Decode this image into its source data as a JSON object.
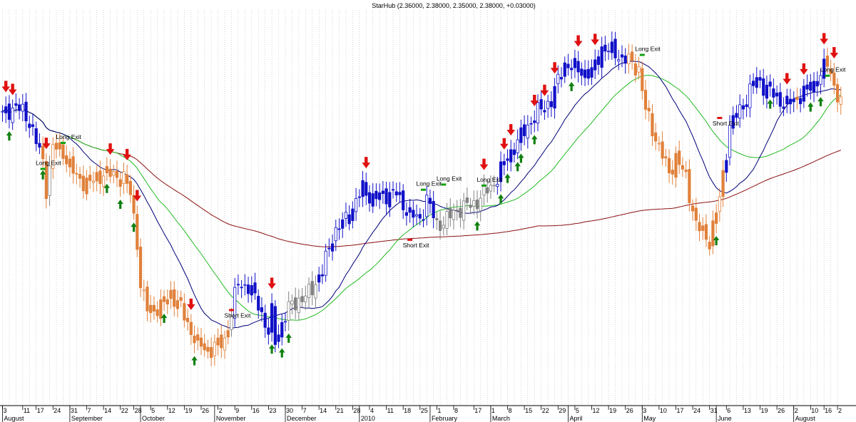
{
  "chart_data": {
    "type": "candlestick",
    "title": "StarHub (2.36000, 2.38000, 2.35000, 2.38000, +0.03000)",
    "grid": "vertical dotted",
    "colors": {
      "up_candle": "#1010c8",
      "down_candle": "#e0803a",
      "neutral_candle": "#808080",
      "ma_short": "#00007a",
      "ma_medium": "#22bb22",
      "ma_long": "#8b1010",
      "buy_arrow": "#108010",
      "sell_arrow": "#e01010",
      "exit_marker_long": "#10a010",
      "exit_marker_short": "#e01010"
    },
    "x_ticks": [
      {
        "label": "3",
        "i": 0
      },
      {
        "label": "11",
        "i": 6
      },
      {
        "label": "17",
        "i": 10
      },
      {
        "label": "24",
        "i": 15
      },
      {
        "label": "31",
        "i": 20
      },
      {
        "label": "7",
        "i": 25
      },
      {
        "label": "14",
        "i": 30
      },
      {
        "label": "22",
        "i": 35
      },
      {
        "label": "28",
        "i": 39
      },
      {
        "label": "5",
        "i": 44
      },
      {
        "label": "12",
        "i": 49
      },
      {
        "label": "19",
        "i": 54
      },
      {
        "label": "26",
        "i": 59
      },
      {
        "label": "2",
        "i": 64
      },
      {
        "label": "9",
        "i": 69
      },
      {
        "label": "16",
        "i": 74
      },
      {
        "label": "23",
        "i": 79
      },
      {
        "label": "30",
        "i": 84
      },
      {
        "label": "7",
        "i": 89
      },
      {
        "label": "14",
        "i": 94
      },
      {
        "label": "21",
        "i": 99
      },
      {
        "label": "28",
        "i": 104
      },
      {
        "label": "4",
        "i": 109
      },
      {
        "label": "11",
        "i": 114
      },
      {
        "label": "18",
        "i": 119
      },
      {
        "label": "25",
        "i": 124
      },
      {
        "label": "1",
        "i": 129
      },
      {
        "label": "8",
        "i": 134
      },
      {
        "label": "17",
        "i": 140
      },
      {
        "label": "1",
        "i": 145
      },
      {
        "label": "8",
        "i": 150
      },
      {
        "label": "15",
        "i": 155
      },
      {
        "label": "22",
        "i": 160
      },
      {
        "label": "29",
        "i": 165
      },
      {
        "label": "5",
        "i": 170
      },
      {
        "label": "12",
        "i": 175
      },
      {
        "label": "19",
        "i": 180
      },
      {
        "label": "26",
        "i": 185
      },
      {
        "label": "3",
        "i": 190
      },
      {
        "label": "10",
        "i": 195
      },
      {
        "label": "17",
        "i": 200
      },
      {
        "label": "24",
        "i": 205
      },
      {
        "label": "31",
        "i": 210
      },
      {
        "label": "6",
        "i": 215
      },
      {
        "label": "13",
        "i": 220
      },
      {
        "label": "19",
        "i": 225
      },
      {
        "label": "26",
        "i": 230
      },
      {
        "label": "2",
        "i": 235
      },
      {
        "label": "10",
        "i": 240
      },
      {
        "label": "16",
        "i": 244
      },
      {
        "label": "2",
        "i": 248
      }
    ],
    "month_labels": [
      {
        "label": "August",
        "i": 0
      },
      {
        "label": "September",
        "i": 20
      },
      {
        "label": "October",
        "i": 41
      },
      {
        "label": "November",
        "i": 63
      },
      {
        "label": "December",
        "i": 84
      },
      {
        "label": "2010",
        "i": 106
      },
      {
        "label": "February",
        "i": 127
      },
      {
        "label": "March",
        "i": 145
      },
      {
        "label": "April",
        "i": 168
      },
      {
        "label": "May",
        "i": 190
      },
      {
        "label": "June",
        "i": 212
      },
      {
        "label": "August",
        "i": 235
      }
    ],
    "annotations": [
      {
        "text": "Long Exit",
        "i": 18,
        "y": 2.405
      },
      {
        "text": "Long Exit",
        "i": 12,
        "y": 2.355
      },
      {
        "text": "Short Exit",
        "i": 68,
        "y": 2.062
      },
      {
        "text": "Short Exit",
        "i": 121,
        "y": 2.197
      },
      {
        "text": "Long Exit",
        "i": 125,
        "y": 2.315
      },
      {
        "text": "Long Exit",
        "i": 131,
        "y": 2.325
      },
      {
        "text": "Long Exit",
        "i": 143,
        "y": 2.323
      },
      {
        "text": "Long Exit",
        "i": 190,
        "y": 2.574
      },
      {
        "text": "Short Exit",
        "i": 213,
        "y": 2.431
      },
      {
        "text": "Long Exit",
        "i": 245,
        "y": 2.534
      }
    ]
  }
}
